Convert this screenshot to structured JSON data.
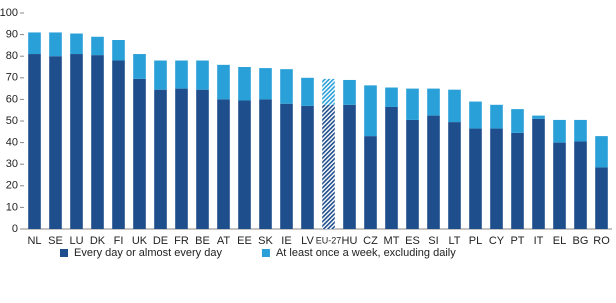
{
  "chart_data": {
    "type": "stacked-bar",
    "categories": [
      "NL",
      "SE",
      "LU",
      "DK",
      "FI",
      "UK",
      "DE",
      "FR",
      "BE",
      "AT",
      "EE",
      "SK",
      "IE",
      "LV",
      "EU-27",
      "HU",
      "CZ",
      "MT",
      "ES",
      "SI",
      "LT",
      "PL",
      "CY",
      "PT",
      "IT",
      "EL",
      "BG",
      "RO"
    ],
    "series": [
      {
        "name": "Every day or almost every day",
        "color": "#1f4e8c",
        "values": [
          81,
          80,
          81,
          80.5,
          78,
          69.5,
          64.5,
          65,
          64.5,
          60,
          59.5,
          60,
          58,
          57,
          57.5,
          57.5,
          43,
          56.5,
          50.5,
          52.5,
          49.5,
          46.5,
          46.5,
          44.5,
          51,
          40,
          40.5,
          28.5
        ]
      },
      {
        "name": "At least once a week, excluding daily",
        "color": "#2aa0d8",
        "values": [
          10,
          11,
          9.5,
          8.5,
          9.5,
          11.5,
          13.5,
          13,
          13.5,
          16,
          15.5,
          14.5,
          16,
          13,
          12,
          11.5,
          23.5,
          9,
          14.5,
          12.5,
          15,
          12.5,
          11,
          11,
          1.5,
          10.5,
          10,
          14.5
        ]
      }
    ],
    "highlight": "EU-27",
    "ylim": [
      0,
      100
    ],
    "yticks": [
      0,
      10,
      20,
      30,
      40,
      50,
      60,
      70,
      80,
      90,
      100
    ],
    "grid": false,
    "legend": "bottom"
  }
}
